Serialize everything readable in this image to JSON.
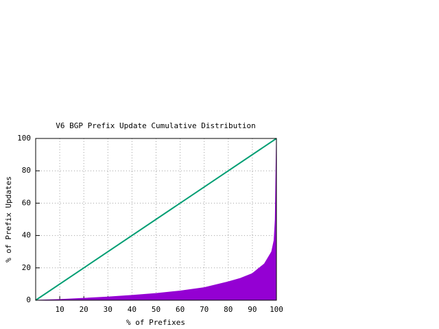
{
  "chart_data": {
    "type": "area",
    "title": "V6 BGP Prefix Update Cumulative Distribution",
    "xlabel": "% of Prefixes",
    "ylabel": "% of Prefix Updates",
    "xlim": [
      0,
      100
    ],
    "ylim": [
      0,
      100
    ],
    "xticks": [
      10,
      20,
      30,
      40,
      50,
      60,
      70,
      80,
      90,
      100
    ],
    "yticks": [
      0,
      20,
      40,
      60,
      80,
      100
    ],
    "grid": true,
    "series": [
      {
        "style": "area",
        "color": "#9400d3",
        "x": [
          0,
          10,
          20,
          30,
          40,
          50,
          60,
          70,
          80,
          85,
          90,
          95,
          98,
          99,
          99.5,
          100
        ],
        "values": [
          0,
          0.5,
          1.2,
          2,
          3,
          4.2,
          5.7,
          7.8,
          11.4,
          13.5,
          16.5,
          22.5,
          30,
          37,
          50,
          100
        ]
      },
      {
        "style": "line",
        "color": "#009e73",
        "x": [
          0,
          100
        ],
        "values": [
          0,
          100
        ]
      }
    ]
  }
}
